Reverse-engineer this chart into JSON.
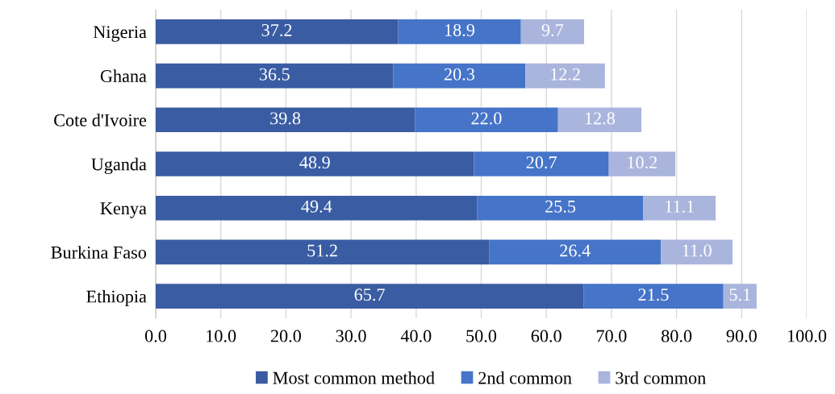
{
  "chart_data": {
    "type": "bar",
    "orientation": "horizontal",
    "stacked": true,
    "categories": [
      "Nigeria",
      "Ghana",
      "Cote d'Ivoire",
      "Uganda",
      "Kenya",
      "Burkina Faso",
      "Ethiopia"
    ],
    "series": [
      {
        "name": "Most common method",
        "color": "#3a5ca3",
        "values": [
          37.2,
          36.5,
          39.8,
          48.9,
          49.4,
          51.2,
          65.7
        ],
        "value_labels": [
          "37.2",
          "36.5",
          "39.8",
          "48.9",
          "49.4",
          "51.2",
          "65.7"
        ]
      },
      {
        "name": "2nd common",
        "color": "#4674c8",
        "values": [
          18.9,
          20.3,
          22.0,
          20.7,
          25.5,
          26.4,
          21.5
        ],
        "value_labels": [
          "18.9",
          "20.3",
          "22.0",
          "20.7",
          "25.5",
          "26.4",
          "21.5"
        ]
      },
      {
        "name": "3rd common",
        "color": "#a9b5dc",
        "values": [
          9.7,
          12.2,
          12.8,
          10.2,
          11.1,
          11.0,
          5.1
        ],
        "value_labels": [
          "9.7",
          "12.2",
          "12.8",
          "10.2",
          "11.1",
          "11.0",
          "5.1"
        ]
      }
    ],
    "xlim": [
      0,
      100
    ],
    "xticks": [
      {
        "value": 0,
        "label": "0.0"
      },
      {
        "value": 10,
        "label": "10.0"
      },
      {
        "value": 20,
        "label": "20.0"
      },
      {
        "value": 30,
        "label": "30.0"
      },
      {
        "value": 40,
        "label": "40.0"
      },
      {
        "value": 50,
        "label": "50.0"
      },
      {
        "value": 60,
        "label": "60.0"
      },
      {
        "value": 70,
        "label": "70.0"
      },
      {
        "value": 80,
        "label": "80.0"
      },
      {
        "value": 90,
        "label": "90.0"
      },
      {
        "value": 100,
        "label": "100.0"
      }
    ],
    "grid": "x",
    "legend": "bottom"
  }
}
